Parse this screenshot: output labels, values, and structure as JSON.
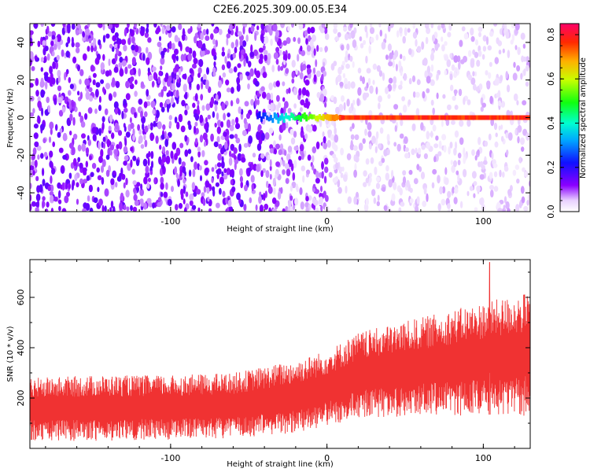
{
  "title": "C2E6.2025.309.00.05.E34",
  "chart_data": [
    {
      "type": "heatmap",
      "name": "spectrogram",
      "xlabel": "Height of straight line (km)",
      "ylabel": "Frequency (Hz)",
      "xlim": [
        -190,
        130
      ],
      "ylim": [
        -50,
        50
      ],
      "x_ticks": [
        -100,
        0,
        100
      ],
      "x_tick_labels": [
        "-100",
        "0",
        "100"
      ],
      "y_ticks": [
        -40,
        -20,
        0,
        20,
        40
      ],
      "y_tick_labels": [
        "-40",
        "-20",
        "0",
        "20",
        "40"
      ],
      "signal_line": {
        "frequency_hz": 0,
        "x_start": -45,
        "x_end": 130,
        "peak_amplitude": 0.8
      },
      "noise_transition_km": 0,
      "colorbar": {
        "label": "Normalized spectral amplitude",
        "range": [
          0.0,
          0.85
        ],
        "ticks": [
          0.0,
          0.2,
          0.4,
          0.6,
          0.8
        ],
        "tick_labels": [
          "0.0",
          "0.2",
          "0.4",
          "0.6",
          "0.8"
        ]
      }
    },
    {
      "type": "area",
      "name": "snr",
      "color": "#f03232",
      "xlabel": "Height of straight line (km)",
      "ylabel": "SNR (10 * v/v)",
      "xlim": [
        -190,
        130
      ],
      "ylim": [
        0,
        750
      ],
      "x_ticks": [
        -100,
        0,
        100
      ],
      "x_tick_labels": [
        "-100",
        "0",
        "100"
      ],
      "y_ticks": [
        200,
        400,
        600
      ],
      "y_tick_labels": [
        "200",
        "400",
        "600"
      ],
      "envelope_x": [
        -190,
        -150,
        -100,
        -60,
        -20,
        0,
        20,
        60,
        100,
        130
      ],
      "envelope_high": [
        280,
        290,
        290,
        300,
        350,
        390,
        460,
        520,
        580,
        620
      ],
      "envelope_low": [
        30,
        30,
        35,
        40,
        60,
        90,
        120,
        130,
        130,
        130
      ],
      "peak_x": 104,
      "peak_value": 740
    }
  ]
}
